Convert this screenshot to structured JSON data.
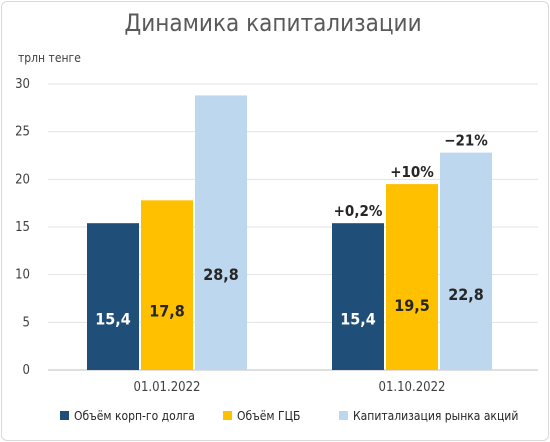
{
  "chart_data": {
    "type": "bar",
    "title": "Динамика капитализации",
    "unit_label": "трлн тенге",
    "ylim": [
      0,
      30
    ],
    "yticks": [
      "0",
      "5",
      "10",
      "15",
      "20",
      "25",
      "30"
    ],
    "grid": true,
    "legend_position": "bottom",
    "categories": [
      "01.01.2022",
      "01.10.2022"
    ],
    "series": [
      {
        "name": "Объём корп-го долга",
        "color": "#1f4e79",
        "label_color": "#ffffff",
        "values": [
          15.4,
          15.4
        ],
        "data_labels": [
          "15,4",
          "15,4"
        ],
        "change_labels": [
          "",
          "+0,2%"
        ]
      },
      {
        "name": "Объём ГЦБ",
        "color": "#ffc000",
        "label_color": "#262626",
        "values": [
          17.8,
          19.5
        ],
        "data_labels": [
          "17,8",
          "19,5"
        ],
        "change_labels": [
          "",
          "+10%"
        ]
      },
      {
        "name": "Капитализация рынка акций",
        "color": "#bdd7ee",
        "label_color": "#262626",
        "values": [
          28.8,
          22.8
        ],
        "data_labels": [
          "28,8",
          "22,8"
        ],
        "change_labels": [
          "",
          "−21%"
        ]
      }
    ]
  }
}
